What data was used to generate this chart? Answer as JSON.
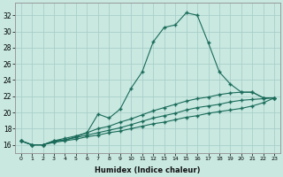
{
  "title": "",
  "xlabel": "Humidex (Indice chaleur)",
  "ylabel": "",
  "bg_color": "#c8e8e0",
  "grid_color": "#aacfca",
  "line_color": "#1a6b5a",
  "xlim": [
    -0.5,
    23.5
  ],
  "ylim": [
    15.0,
    33.5
  ],
  "yticks": [
    16,
    18,
    20,
    22,
    24,
    26,
    28,
    30,
    32
  ],
  "xticks": [
    0,
    1,
    2,
    3,
    4,
    5,
    6,
    7,
    8,
    9,
    10,
    11,
    12,
    13,
    14,
    15,
    16,
    17,
    18,
    19,
    20,
    21,
    22,
    23
  ],
  "line1_x": [
    0,
    1,
    2,
    3,
    4,
    5,
    6,
    7,
    8,
    9,
    10,
    11,
    12,
    13,
    14,
    15,
    16,
    17,
    18,
    19,
    20,
    21,
    22,
    23
  ],
  "line1_y": [
    16.5,
    16.0,
    16.0,
    16.5,
    16.6,
    17.0,
    17.5,
    19.8,
    19.3,
    20.4,
    23.0,
    25.0,
    28.7,
    30.5,
    30.8,
    32.3,
    32.0,
    28.6,
    25.0,
    23.5,
    22.5,
    22.5,
    21.8,
    21.8
  ],
  "line2_x": [
    0,
    1,
    2,
    3,
    4,
    5,
    6,
    7,
    8,
    9,
    10,
    11,
    12,
    13,
    14,
    15,
    16,
    17,
    18,
    19,
    20,
    21,
    22,
    23
  ],
  "line2_y": [
    16.5,
    16.0,
    16.0,
    16.5,
    16.8,
    17.1,
    17.5,
    18.0,
    18.3,
    18.8,
    19.2,
    19.7,
    20.2,
    20.6,
    21.0,
    21.4,
    21.7,
    21.9,
    22.2,
    22.4,
    22.5,
    22.5,
    21.8,
    21.8
  ],
  "line3_x": [
    0,
    1,
    2,
    3,
    4,
    5,
    6,
    7,
    8,
    9,
    10,
    11,
    12,
    13,
    14,
    15,
    16,
    17,
    18,
    19,
    20,
    21,
    22,
    23
  ],
  "line3_y": [
    16.5,
    16.0,
    16.0,
    16.4,
    16.6,
    16.9,
    17.2,
    17.5,
    17.8,
    18.1,
    18.5,
    18.9,
    19.3,
    19.6,
    19.9,
    20.3,
    20.6,
    20.8,
    21.0,
    21.3,
    21.5,
    21.6,
    21.7,
    21.8
  ],
  "line4_x": [
    0,
    1,
    2,
    3,
    4,
    5,
    6,
    7,
    8,
    9,
    10,
    11,
    12,
    13,
    14,
    15,
    16,
    17,
    18,
    19,
    20,
    21,
    22,
    23
  ],
  "line4_y": [
    16.5,
    16.0,
    16.0,
    16.3,
    16.5,
    16.7,
    17.0,
    17.2,
    17.5,
    17.7,
    18.0,
    18.3,
    18.6,
    18.8,
    19.1,
    19.4,
    19.6,
    19.9,
    20.1,
    20.3,
    20.5,
    20.8,
    21.2,
    21.8
  ]
}
